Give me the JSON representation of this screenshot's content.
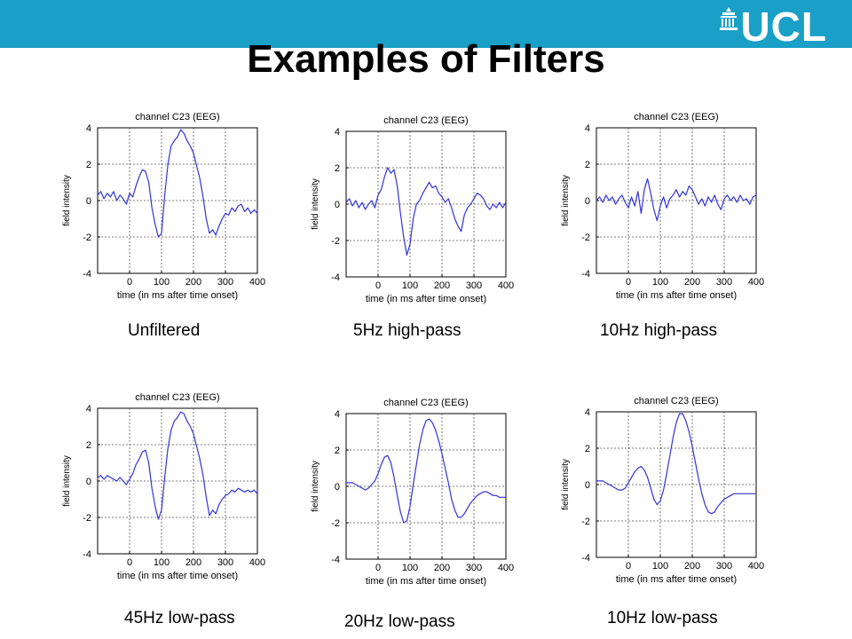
{
  "header": {
    "title": "Examples of Filters",
    "logo_text": "UCL",
    "bar_color": "#1aa0c6"
  },
  "colors": {
    "trace": "#3333dd",
    "grid": "#555555"
  },
  "chart_data": [
    {
      "type": "line",
      "title": "channel C23 (EEG)",
      "caption": "Unfiltered",
      "xlabel": "time (in ms after time onset)",
      "ylabel": "field intensity",
      "xlim": [
        -100,
        400
      ],
      "ylim": [
        -4,
        4
      ],
      "xticks": [
        0,
        100,
        200,
        300,
        400
      ],
      "yticks": [
        -4,
        -2,
        0,
        2,
        4
      ],
      "grid": true,
      "series": [
        {
          "x": [
            -100,
            -90,
            -80,
            -70,
            -60,
            -50,
            -40,
            -30,
            -20,
            -10,
            0,
            10,
            20,
            30,
            40,
            50,
            60,
            70,
            80,
            90,
            100,
            110,
            120,
            130,
            140,
            150,
            160,
            170,
            180,
            190,
            200,
            210,
            220,
            230,
            240,
            250,
            260,
            270,
            280,
            290,
            300,
            310,
            320,
            330,
            340,
            350,
            360,
            370,
            380,
            390,
            400
          ],
          "y": [
            0.3,
            0.5,
            0.1,
            0.4,
            0.2,
            0.5,
            0.0,
            0.3,
            0.1,
            -0.2,
            0.4,
            0.2,
            0.8,
            1.3,
            1.7,
            1.6,
            1.0,
            -0.4,
            -1.3,
            -2.0,
            -1.8,
            0.3,
            2.0,
            3.0,
            3.3,
            3.5,
            3.9,
            3.7,
            3.3,
            3.0,
            2.6,
            1.9,
            1.2,
            0.2,
            -1.0,
            -1.8,
            -1.6,
            -1.9,
            -1.4,
            -1.0,
            -0.7,
            -0.8,
            -0.4,
            -0.6,
            -0.3,
            -0.2,
            -0.6,
            -0.4,
            -0.7,
            -0.5,
            -0.7
          ]
        }
      ]
    },
    {
      "type": "line",
      "title": "channel C23 (EEG)",
      "caption": "5Hz high-pass",
      "xlabel": "time (in ms after time onset)",
      "ylabel": "field intensity",
      "xlim": [
        -100,
        400
      ],
      "ylim": [
        -4,
        4
      ],
      "xticks": [
        0,
        100,
        200,
        300,
        400
      ],
      "yticks": [
        -4,
        -2,
        0,
        2,
        4
      ],
      "grid": true,
      "series": [
        {
          "x": [
            -100,
            -90,
            -80,
            -70,
            -60,
            -50,
            -40,
            -30,
            -20,
            -10,
            0,
            10,
            20,
            30,
            40,
            50,
            60,
            70,
            80,
            90,
            100,
            110,
            120,
            130,
            140,
            150,
            160,
            170,
            180,
            190,
            200,
            210,
            220,
            230,
            240,
            250,
            260,
            270,
            280,
            290,
            300,
            310,
            320,
            330,
            340,
            350,
            360,
            370,
            380,
            390,
            400
          ],
          "y": [
            0.1,
            0.3,
            -0.1,
            0.2,
            -0.2,
            0.1,
            -0.3,
            0.0,
            0.2,
            -0.2,
            0.5,
            0.8,
            1.5,
            2.0,
            1.7,
            1.9,
            1.0,
            -0.5,
            -1.8,
            -2.8,
            -2.2,
            -0.8,
            0.0,
            0.2,
            0.6,
            0.9,
            1.2,
            0.9,
            1.0,
            0.6,
            0.4,
            0.1,
            0.3,
            -0.2,
            -0.8,
            -1.2,
            -1.5,
            -0.6,
            -0.2,
            0.0,
            0.3,
            0.6,
            0.5,
            0.3,
            -0.1,
            -0.3,
            0.0,
            -0.2,
            0.1,
            -0.2,
            0.1
          ]
        }
      ]
    },
    {
      "type": "line",
      "title": "channel C23 (EEG)",
      "caption": "10Hz high-pass",
      "xlabel": "time (in ms after time onset)",
      "ylabel": "field intensity",
      "xlim": [
        -100,
        400
      ],
      "ylim": [
        -4,
        4
      ],
      "xticks": [
        0,
        100,
        200,
        300,
        400
      ],
      "yticks": [
        -4,
        -2,
        0,
        2,
        4
      ],
      "grid": true,
      "series": [
        {
          "x": [
            -100,
            -90,
            -80,
            -70,
            -60,
            -50,
            -40,
            -30,
            -20,
            -10,
            0,
            10,
            20,
            30,
            40,
            50,
            60,
            70,
            80,
            90,
            100,
            110,
            120,
            130,
            140,
            150,
            160,
            170,
            180,
            190,
            200,
            210,
            220,
            230,
            240,
            250,
            260,
            270,
            280,
            290,
            300,
            310,
            320,
            330,
            340,
            350,
            360,
            370,
            380,
            390,
            400
          ],
          "y": [
            0.0,
            0.2,
            -0.1,
            0.3,
            0.0,
            0.2,
            -0.2,
            0.1,
            0.3,
            -0.1,
            -0.4,
            0.2,
            -0.3,
            0.5,
            -0.7,
            0.6,
            1.2,
            0.4,
            -0.5,
            -1.1,
            -0.3,
            0.2,
            -0.4,
            0.1,
            0.3,
            0.6,
            0.2,
            0.5,
            0.3,
            0.8,
            0.6,
            0.2,
            -0.2,
            0.1,
            -0.3,
            0.2,
            -0.1,
            0.3,
            -0.2,
            -0.5,
            0.1,
            0.3,
            0.0,
            0.2,
            -0.1,
            0.3,
            0.0,
            0.1,
            -0.2,
            0.2,
            0.3
          ]
        }
      ]
    },
    {
      "type": "line",
      "title": "channel C23 (EEG)",
      "caption": "45Hz low-pass",
      "xlabel": "time (in ms after time onset)",
      "ylabel": "field intensity",
      "xlim": [
        -100,
        400
      ],
      "ylim": [
        -4,
        4
      ],
      "xticks": [
        0,
        100,
        200,
        300,
        400
      ],
      "yticks": [
        -4,
        -2,
        0,
        2,
        4
      ],
      "grid": true,
      "series": [
        {
          "x": [
            -100,
            -90,
            -80,
            -70,
            -60,
            -50,
            -40,
            -30,
            -20,
            -10,
            0,
            10,
            20,
            30,
            40,
            50,
            60,
            70,
            80,
            90,
            100,
            110,
            120,
            130,
            140,
            150,
            160,
            170,
            180,
            190,
            200,
            210,
            220,
            230,
            240,
            250,
            260,
            270,
            280,
            290,
            300,
            310,
            320,
            330,
            340,
            350,
            360,
            370,
            380,
            390,
            400
          ],
          "y": [
            0.2,
            0.3,
            0.1,
            0.3,
            0.2,
            0.1,
            0.0,
            0.2,
            0.0,
            -0.2,
            0.1,
            0.4,
            0.9,
            1.2,
            1.6,
            1.7,
            1.0,
            -0.4,
            -1.4,
            -2.1,
            -1.6,
            0.2,
            1.8,
            2.8,
            3.3,
            3.5,
            3.8,
            3.7,
            3.3,
            3.0,
            2.6,
            1.9,
            1.2,
            0.3,
            -0.9,
            -1.9,
            -1.6,
            -1.8,
            -1.3,
            -1.0,
            -0.8,
            -0.7,
            -0.5,
            -0.6,
            -0.4,
            -0.5,
            -0.6,
            -0.5,
            -0.6,
            -0.5,
            -0.7
          ]
        }
      ]
    },
    {
      "type": "line",
      "title": "channel C23 (EEG)",
      "caption": "20Hz low-pass",
      "xlabel": "time (in ms after time onset)",
      "ylabel": "field intensity",
      "xlim": [
        -100,
        400
      ],
      "ylim": [
        -4,
        4
      ],
      "xticks": [
        0,
        100,
        200,
        300,
        400
      ],
      "yticks": [
        -4,
        -2,
        0,
        2,
        4
      ],
      "grid": true,
      "series": [
        {
          "x": [
            -100,
            -90,
            -80,
            -70,
            -60,
            -50,
            -40,
            -30,
            -20,
            -10,
            0,
            10,
            20,
            30,
            40,
            50,
            60,
            70,
            80,
            90,
            100,
            110,
            120,
            130,
            140,
            150,
            160,
            170,
            180,
            190,
            200,
            210,
            220,
            230,
            240,
            250,
            260,
            270,
            280,
            290,
            300,
            310,
            320,
            330,
            340,
            350,
            360,
            370,
            380,
            390,
            400
          ],
          "y": [
            0.2,
            0.2,
            0.2,
            0.1,
            0.0,
            -0.1,
            -0.2,
            -0.1,
            0.1,
            0.3,
            0.7,
            1.2,
            1.6,
            1.7,
            1.3,
            0.5,
            -0.5,
            -1.4,
            -2.0,
            -1.9,
            -1.1,
            0.1,
            1.2,
            2.3,
            3.1,
            3.6,
            3.7,
            3.5,
            3.1,
            2.5,
            1.8,
            1.0,
            0.2,
            -0.7,
            -1.3,
            -1.7,
            -1.7,
            -1.5,
            -1.2,
            -0.9,
            -0.7,
            -0.5,
            -0.4,
            -0.3,
            -0.3,
            -0.4,
            -0.5,
            -0.5,
            -0.6,
            -0.6,
            -0.6
          ]
        }
      ]
    },
    {
      "type": "line",
      "title": "channel C23 (EEG)",
      "caption": "10Hz low-pass",
      "xlabel": "time (in ms after time onset)",
      "ylabel": "field intensity",
      "xlim": [
        -100,
        400
      ],
      "ylim": [
        -4,
        4
      ],
      "xticks": [
        0,
        100,
        200,
        300,
        400
      ],
      "yticks": [
        -4,
        -2,
        0,
        2,
        4
      ],
      "grid": true,
      "series": [
        {
          "x": [
            -100,
            -90,
            -80,
            -70,
            -60,
            -50,
            -40,
            -30,
            -20,
            -10,
            0,
            10,
            20,
            30,
            40,
            50,
            60,
            70,
            80,
            90,
            100,
            110,
            120,
            130,
            140,
            150,
            160,
            170,
            180,
            190,
            200,
            210,
            220,
            230,
            240,
            250,
            260,
            270,
            280,
            290,
            300,
            310,
            320,
            330,
            340,
            350,
            360,
            370,
            380,
            390,
            400
          ],
          "y": [
            0.2,
            0.2,
            0.2,
            0.1,
            0.0,
            -0.1,
            -0.2,
            -0.3,
            -0.3,
            -0.2,
            0.1,
            0.4,
            0.7,
            0.9,
            1.0,
            0.8,
            0.4,
            -0.2,
            -0.8,
            -1.1,
            -0.9,
            -0.3,
            0.6,
            1.6,
            2.6,
            3.4,
            3.9,
            3.9,
            3.5,
            2.9,
            2.1,
            1.2,
            0.3,
            -0.5,
            -1.1,
            -1.5,
            -1.6,
            -1.5,
            -1.2,
            -1.0,
            -0.8,
            -0.7,
            -0.6,
            -0.5,
            -0.5,
            -0.5,
            -0.5,
            -0.5,
            -0.5,
            -0.5,
            -0.5
          ]
        }
      ]
    }
  ]
}
